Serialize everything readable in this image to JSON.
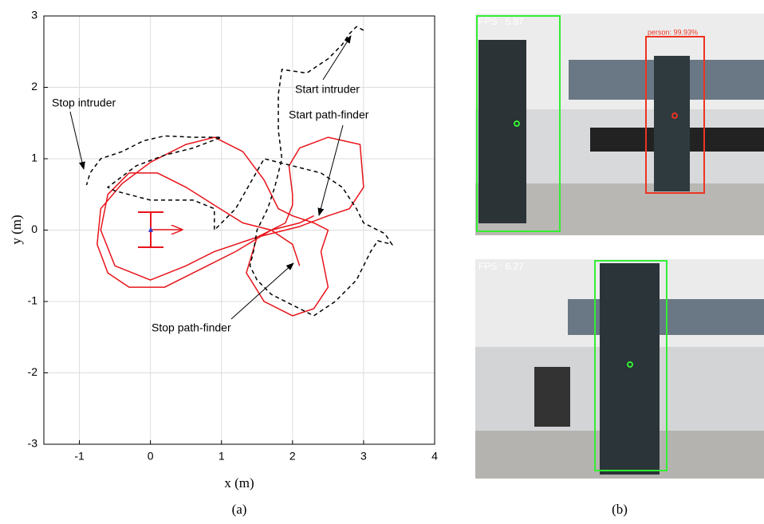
{
  "chart_data": {
    "type": "line",
    "xlabel": "x (m)",
    "ylabel": "y (m)",
    "xlim": [
      -1.5,
      4
    ],
    "ylim": [
      -3,
      3
    ],
    "xticks": [
      -1,
      0,
      1,
      2,
      3,
      4
    ],
    "yticks": [
      -3,
      -2,
      -1,
      0,
      1,
      2,
      3
    ],
    "grid": true,
    "annotations": [
      "Stop intruder",
      "Start intruder",
      "Start path-finder",
      "Stop path-finder"
    ],
    "series": [
      {
        "color": "#e8141b",
        "dash": false,
        "x": [
          2.3,
          2.1,
          1.7,
          1.2,
          0.6,
          0.2,
          -0.3,
          -0.6,
          -0.75,
          -0.7,
          -0.4,
          0,
          0.5,
          0.9,
          1.3,
          1.6,
          1.8,
          2.0,
          2.3,
          2.5,
          2.4,
          2.5,
          2.3,
          2.0,
          1.6,
          1.35,
          1.5,
          1.9,
          2.0,
          2.0,
          1.95,
          2.1,
          2.5,
          2.95,
          3.0,
          2.8,
          2.5,
          2.1,
          1.5,
          0.9,
          0.5,
          0,
          -0.5,
          -0.7,
          -0.6,
          -0.3,
          0.1,
          0.5,
          0.9,
          1.3,
          1.7,
          2.0,
          2.1
        ],
        "y": [
          0.2,
          0.1,
          0.0,
          -0.3,
          -0.6,
          -0.8,
          -0.8,
          -0.6,
          -0.2,
          0.3,
          0.65,
          0.95,
          1.2,
          1.3,
          1.1,
          0.7,
          0.3,
          0.2,
          0.1,
          0.0,
          -0.3,
          -0.8,
          -1.1,
          -1.2,
          -1.0,
          -0.6,
          -0.1,
          0.1,
          0.35,
          0.5,
          0.9,
          1.15,
          1.3,
          1.2,
          0.6,
          0.3,
          0.2,
          0.05,
          -0.1,
          -0.3,
          -0.5,
          -0.7,
          -0.5,
          0,
          0.5,
          0.8,
          0.8,
          0.6,
          0.35,
          0.1,
          0.0,
          -0.2,
          -0.5
        ]
      },
      {
        "color": "#000000",
        "dash": true,
        "x": [
          3.0,
          2.9,
          2.8,
          2.7,
          2.5,
          2.2,
          1.85,
          1.8,
          1.8,
          1.85,
          1.75,
          1.65,
          1.5,
          1.45,
          1.4,
          1.5,
          1.7,
          2.0,
          2.3,
          2.6,
          2.9,
          3.1,
          3.2,
          3.4,
          3.3,
          3.0,
          2.9,
          2.7,
          2.4,
          2.0,
          1.6,
          1.2,
          0.9,
          0.9,
          0.6,
          0,
          -0.5,
          -0.6,
          -0.2,
          0.2,
          0.6,
          1.0,
          0.6,
          0.2,
          -0.1,
          -0.4,
          -0.7,
          -0.85,
          -0.9
        ],
        "y": [
          2.8,
          2.85,
          2.75,
          2.6,
          2.4,
          2.2,
          2.25,
          1.9,
          1.4,
          1.0,
          0.6,
          0.3,
          0.0,
          -0.3,
          -0.5,
          -0.7,
          -0.9,
          -1.05,
          -1.2,
          -1.0,
          -0.7,
          -0.3,
          -0.15,
          -0.2,
          -0.05,
          0.1,
          0.3,
          0.6,
          0.8,
          0.9,
          1.0,
          0.3,
          0.0,
          0.3,
          0.42,
          0.42,
          0.55,
          0.6,
          0.9,
          1.05,
          1.15,
          1.3,
          1.3,
          1.32,
          1.25,
          1.1,
          1.0,
          0.8,
          0.63
        ]
      }
    ]
  },
  "camera": {
    "top": {
      "fps": "FPS : 5.97",
      "label": "person: 99.93%"
    },
    "bottom": {
      "fps": "FPS : 6.27"
    }
  },
  "captions": [
    "(a)",
    "(b)"
  ]
}
